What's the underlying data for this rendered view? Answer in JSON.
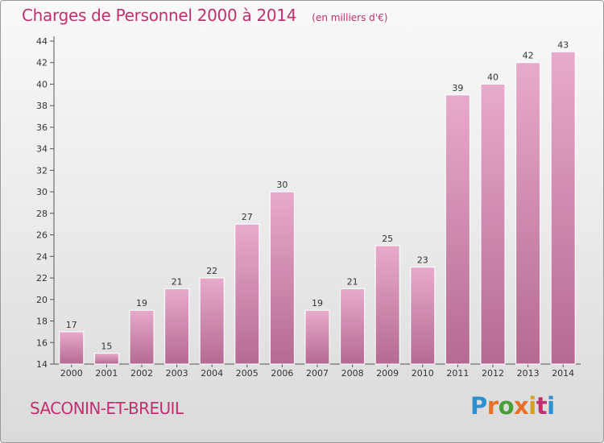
{
  "title": "Charges de Personnel 2000 à 2014",
  "subtitle": "(en milliers d'€)",
  "commune": "SACONIN-ET-BREUIL",
  "logo": {
    "text": "Proxiti",
    "colors": [
      "#2e8fd0",
      "#e8702a",
      "#4a9e3a",
      "#e8702a",
      "#d9a020",
      "#c0306e",
      "#2e8fd0"
    ]
  },
  "colors": {
    "accent": "#c0306e",
    "bar_light": "#e8aacb",
    "bar_dark": "#b56a92"
  },
  "chart_data": {
    "type": "bar",
    "categories": [
      "2000",
      "2001",
      "2002",
      "2003",
      "2004",
      "2005",
      "2006",
      "2007",
      "2008",
      "2009",
      "2010",
      "2011",
      "2012",
      "2013",
      "2014"
    ],
    "values": [
      17,
      15,
      19,
      21,
      22,
      27,
      30,
      19,
      21,
      25,
      23,
      39,
      40,
      42,
      43
    ],
    "title": "Charges de Personnel 2000 à 2014",
    "subtitle": "(en milliers d'€)",
    "xlabel": "",
    "ylabel": "",
    "ylim": [
      14,
      44
    ],
    "yticks": [
      14,
      16,
      18,
      20,
      22,
      24,
      26,
      28,
      30,
      32,
      34,
      36,
      38,
      40,
      42,
      44
    ],
    "grid": false,
    "legend": "none"
  }
}
